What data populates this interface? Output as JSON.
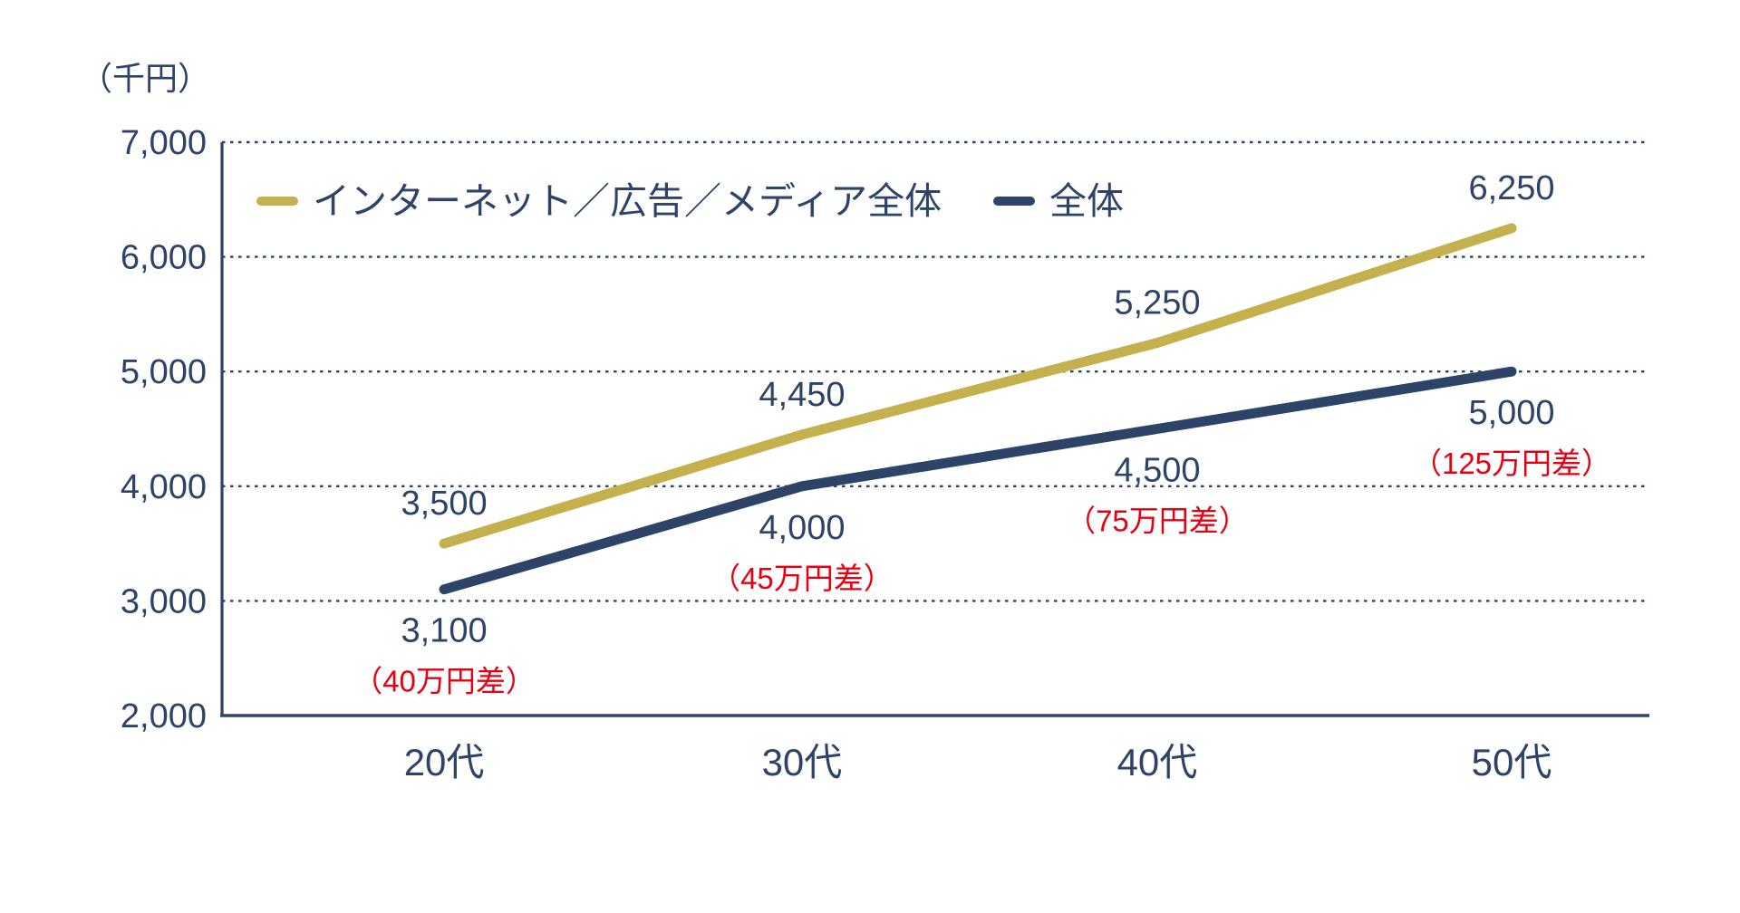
{
  "colors": {
    "navy": "#2d4468",
    "gold": "#c4b04c",
    "red": "#e60012",
    "background": "#ffffff"
  },
  "chart_data": {
    "type": "line",
    "title": "",
    "categories": [
      "20代",
      "30代",
      "40代",
      "50代"
    ],
    "series": [
      {
        "name": "インターネット／広告／メディア全体",
        "color_key": "gold",
        "values": [
          3500,
          4450,
          5250,
          6250
        ],
        "labels": [
          "3,500",
          "4,450",
          "5,250",
          "6,250"
        ],
        "label_position": "above"
      },
      {
        "name": "全体",
        "color_key": "navy",
        "values": [
          3100,
          4000,
          4500,
          5000
        ],
        "labels": [
          "3,100",
          "4,000",
          "4,500",
          "5,000"
        ],
        "label_position": "below"
      }
    ],
    "annotations": [
      {
        "text": "（40万円差）",
        "category_index": 0
      },
      {
        "text": "（45万円差）",
        "category_index": 1
      },
      {
        "text": "（75万円差）",
        "category_index": 2
      },
      {
        "text": "（125万円差）",
        "category_index": 3
      }
    ],
    "y_axis": {
      "unit": "（千円）",
      "min": 2000,
      "max": 7000,
      "step": 1000,
      "tick_labels": [
        "7,000",
        "6,000",
        "5,000",
        "4,000",
        "3,000",
        "2,000"
      ]
    },
    "xlabel": "",
    "ylabel": "（千円）",
    "ylim": [
      2000,
      7000
    ],
    "grid": "horizontal-dotted",
    "legend_position": "top-inside"
  }
}
